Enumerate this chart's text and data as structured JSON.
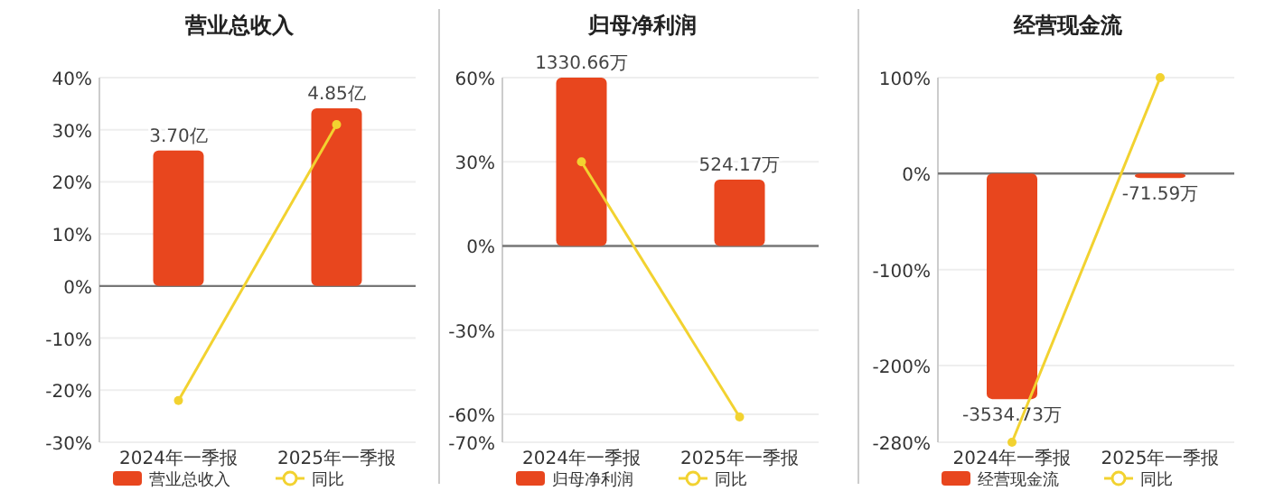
{
  "chart_data": [
    {
      "type": "bar",
      "title": "营业总收入",
      "categories": [
        "2024年一季报",
        "2025年一季报"
      ],
      "ylim": [
        -30,
        40
      ],
      "yticks": [
        {
          "value": -30,
          "label": "-30%"
        },
        {
          "value": -20,
          "label": "-20%"
        },
        {
          "value": -10,
          "label": "-10%"
        },
        {
          "value": 0,
          "label": "0%"
        },
        {
          "value": 10,
          "label": "10%"
        },
        {
          "value": 20,
          "label": "20%"
        },
        {
          "value": 30,
          "label": "30%"
        },
        {
          "value": 40,
          "label": "40%"
        }
      ],
      "y2lim": [
        -4.27,
        5.69
      ],
      "grid": "y",
      "legend": "bottom",
      "series": [
        {
          "name": "营业总收入",
          "axis": "y2",
          "color": "#e8461e",
          "values": [
            3.7,
            4.85
          ],
          "value_labels": [
            "3.70亿",
            "4.85亿"
          ]
        },
        {
          "name": "同比",
          "type": "line",
          "color": "#f2d230",
          "marker": "circle",
          "values": [
            -22,
            31
          ]
        }
      ]
    },
    {
      "type": "bar",
      "title": "归母净利润",
      "categories": [
        "2024年一季报",
        "2025年一季报"
      ],
      "ylim": [
        -70,
        60
      ],
      "yticks": [
        {
          "value": -70,
          "label": "-70%"
        },
        {
          "value": -60,
          "label": "-60%"
        },
        {
          "value": -30,
          "label": "-30%"
        },
        {
          "value": 0,
          "label": "0%"
        },
        {
          "value": 30,
          "label": "30%"
        },
        {
          "value": 60,
          "label": "60%"
        }
      ],
      "y2lim": [
        -1552,
        1330.66
      ],
      "grid": "y",
      "legend": "bottom",
      "series": [
        {
          "name": "归母净利润",
          "axis": "y2",
          "color": "#e8461e",
          "values": [
            1330.66,
            524.17
          ],
          "value_labels": [
            "1330.66万",
            "524.17万"
          ]
        },
        {
          "name": "同比",
          "type": "line",
          "color": "#f2d230",
          "marker": "circle",
          "values": [
            30,
            -61
          ]
        }
      ]
    },
    {
      "type": "bar",
      "title": "经营现金流",
      "categories": [
        "2024年一季报",
        "2025年一季报"
      ],
      "ylim": [
        -280,
        100
      ],
      "yticks": [
        {
          "value": -280,
          "label": "-280%"
        },
        {
          "value": -200,
          "label": "-200%"
        },
        {
          "value": -100,
          "label": "-100%"
        },
        {
          "value": 0,
          "label": "0%"
        },
        {
          "value": 100,
          "label": "100%"
        }
      ],
      "y2lim": [
        -4212,
        1504
      ],
      "grid": "y",
      "legend": "bottom",
      "series": [
        {
          "name": "经营现金流",
          "axis": "y2",
          "color": "#e8461e",
          "values": [
            -3534.73,
            -71.59
          ],
          "value_labels": [
            "-3534.73万",
            "-71.59万"
          ]
        },
        {
          "name": "同比",
          "type": "line",
          "color": "#f2d230",
          "marker": "circle",
          "values": [
            -280,
            100
          ]
        }
      ]
    }
  ]
}
